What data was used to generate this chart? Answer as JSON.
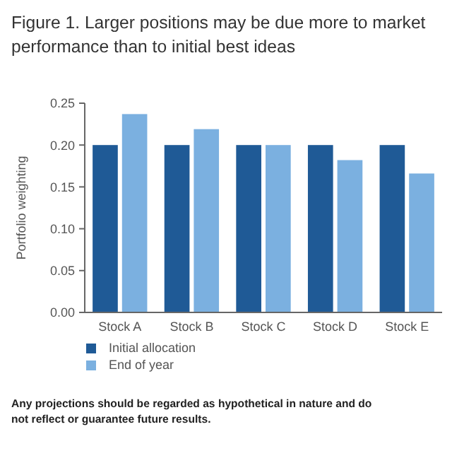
{
  "chart_data": {
    "type": "bar",
    "title": "Figure 1. Larger positions may be due more to market performance than to initial best ideas",
    "ylabel": "Portfolio weighting",
    "categories": [
      "Stock A",
      "Stock B",
      "Stock C",
      "Stock D",
      "Stock E"
    ],
    "series": [
      {
        "name": "Initial allocation",
        "color": "#1f5a96",
        "values": [
          0.2,
          0.2,
          0.2,
          0.2,
          0.2
        ]
      },
      {
        "name": "End of year",
        "color": "#7bb0e0",
        "values": [
          0.237,
          0.219,
          0.2,
          0.182,
          0.166
        ]
      }
    ],
    "ylim": [
      0,
      0.25
    ],
    "yticks": [
      {
        "value": 0,
        "label": "0.00"
      },
      {
        "value": 0.05,
        "label": "0.05"
      },
      {
        "value": 0.1,
        "label": "0.10"
      },
      {
        "value": 0.15,
        "label": "0.15"
      },
      {
        "value": 0.2,
        "label": "0.20"
      },
      {
        "value": 0.25,
        "label": "0.25"
      }
    ],
    "legend": "bottom left",
    "grid": false,
    "annotations": [
      "Any projections should be regarded as hypothetical in nature and do not reflect or guarantee future results."
    ]
  }
}
